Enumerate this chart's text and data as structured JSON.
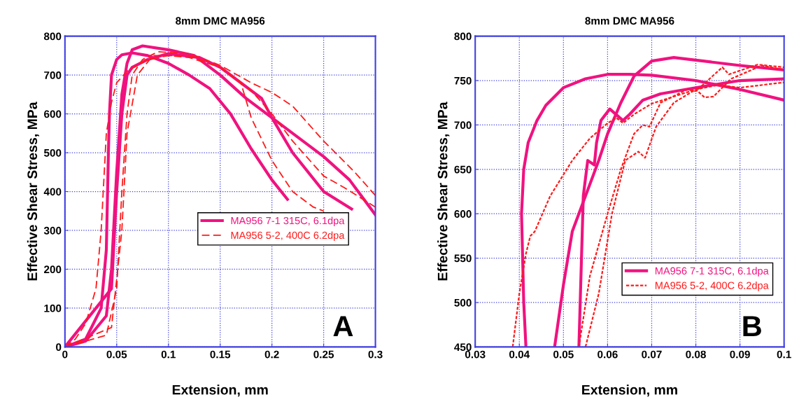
{
  "chart_data": [
    {
      "type": "line",
      "title": "8mm DMC MA956",
      "xlabel": "Extension, mm",
      "ylabel": "Effective Shear Stress, MPa",
      "xlim": [
        0,
        0.3
      ],
      "ylim": [
        0,
        800
      ],
      "xticks": [
        0,
        0.05,
        0.1,
        0.15,
        0.2,
        0.25,
        0.3
      ],
      "yticks": [
        0,
        100,
        200,
        300,
        400,
        500,
        600,
        700,
        800
      ],
      "grid": true,
      "legend": "center right",
      "annotations": [
        "A"
      ],
      "series": [
        {
          "name": "MA956 7-1 315C, 6.1dpa",
          "color": "#f0127f",
          "line_style": "solid",
          "x": [
            0,
            0.02,
            0.035,
            0.04,
            0.042,
            0.043,
            0.045,
            0.05,
            0.055,
            0.065,
            0.08,
            0.1,
            0.12,
            0.14,
            0.16,
            0.18,
            0.2,
            0.215
          ],
          "values": [
            0,
            20,
            100,
            250,
            500,
            600,
            700,
            740,
            752,
            757,
            750,
            730,
            700,
            665,
            600,
            510,
            430,
            380
          ]
        },
        {
          "color": "#f0127f",
          "line_style": "solid",
          "x": [
            0,
            0.02,
            0.04,
            0.045,
            0.05,
            0.055,
            0.06,
            0.065,
            0.075,
            0.1,
            0.125,
            0.15,
            0.175,
            0.2,
            0.225,
            0.25,
            0.275,
            0.3
          ],
          "values": [
            0,
            15,
            80,
            200,
            450,
            650,
            730,
            765,
            775,
            765,
            750,
            700,
            640,
            590,
            540,
            490,
            430,
            340
          ]
        },
        {
          "color": "#f0127f",
          "line_style": "solid",
          "x": [
            0,
            0.045,
            0.05,
            0.055,
            0.06,
            0.065,
            0.08,
            0.1,
            0.13,
            0.15,
            0.17,
            0.19,
            0.2,
            0.22,
            0.25,
            0.277
          ],
          "values": [
            0,
            150,
            400,
            600,
            700,
            720,
            740,
            755,
            745,
            720,
            680,
            640,
            590,
            500,
            400,
            355
          ]
        },
        {
          "name": "MA956 5-2, 400C 6.2dpa",
          "color": "#ff1a1a",
          "line_style": "dashed",
          "x": [
            0,
            0.01,
            0.02,
            0.03,
            0.035,
            0.038,
            0.04,
            0.045,
            0.05,
            0.06,
            0.08,
            0.1,
            0.12,
            0.15,
            0.17,
            0.18,
            0.2,
            0.22,
            0.24,
            0.25
          ],
          "values": [
            0,
            20,
            60,
            150,
            300,
            450,
            550,
            630,
            680,
            710,
            740,
            750,
            745,
            720,
            680,
            590,
            480,
            400,
            360,
            350
          ]
        },
        {
          "color": "#ff1a1a",
          "line_style": "dashed",
          "x": [
            0,
            0.04,
            0.05,
            0.055,
            0.06,
            0.065,
            0.075,
            0.09,
            0.12,
            0.15,
            0.18,
            0.2,
            0.22,
            0.25,
            0.28,
            0.3
          ],
          "values": [
            0,
            30,
            150,
            400,
            600,
            700,
            740,
            760,
            755,
            725,
            680,
            655,
            620,
            530,
            450,
            390
          ]
        },
        {
          "color": "#ff1a1a",
          "line_style": "dashed",
          "x": [
            0,
            0.045,
            0.055,
            0.06,
            0.07,
            0.085,
            0.12,
            0.15,
            0.18,
            0.2,
            0.22,
            0.25,
            0.27,
            0.3
          ],
          "values": [
            0,
            50,
            300,
            550,
            700,
            750,
            750,
            720,
            660,
            600,
            530,
            440,
            410,
            360
          ]
        }
      ]
    },
    {
      "type": "line",
      "title": "8mm DMC MA956",
      "xlabel": "Extension, mm",
      "ylabel": "Effective Shear Stress, MPa",
      "xlim": [
        0.03,
        0.1
      ],
      "ylim": [
        450,
        800
      ],
      "xticks": [
        0.03,
        0.04,
        0.05,
        0.06,
        0.07,
        0.08,
        0.09,
        0.1
      ],
      "yticks": [
        450,
        500,
        550,
        600,
        650,
        700,
        750,
        800
      ],
      "grid": true,
      "legend": "lower right",
      "annotations": [
        "B"
      ],
      "series": [
        {
          "name": "MA956 7-1 315C, 6.1dpa",
          "color": "#f0127f",
          "line_style": "solid",
          "x": [
            0.0415,
            0.041,
            0.0405,
            0.041,
            0.042,
            0.044,
            0.046,
            0.05,
            0.055,
            0.06,
            0.065,
            0.07,
            0.08,
            0.085,
            0.09,
            0.1
          ],
          "values": [
            450,
            500,
            600,
            650,
            680,
            705,
            722,
            742,
            752,
            757,
            757,
            756,
            750,
            745,
            740,
            728
          ]
        },
        {
          "color": "#f0127f",
          "line_style": "solid",
          "x": [
            0.048,
            0.05,
            0.052,
            0.055,
            0.058,
            0.06,
            0.063,
            0.066,
            0.07,
            0.075,
            0.08,
            0.09,
            0.1
          ],
          "values": [
            450,
            520,
            580,
            620,
            660,
            690,
            725,
            755,
            772,
            776,
            773,
            767,
            762
          ]
        },
        {
          "color": "#f0127f",
          "line_style": "solid",
          "x": [
            0.0535,
            0.0545,
            0.0555,
            0.057,
            0.0575,
            0.0585,
            0.0605,
            0.0635,
            0.065,
            0.068,
            0.072,
            0.08,
            0.09,
            0.1
          ],
          "values": [
            450,
            620,
            660,
            655,
            680,
            705,
            718,
            705,
            712,
            728,
            735,
            742,
            750,
            752
          ]
        },
        {
          "name": "MA956 5-2, 400C 6.2dpa",
          "color": "#ff1a1a",
          "line_style": "dotted",
          "x": [
            0.0385,
            0.04,
            0.0415,
            0.0425,
            0.0435,
            0.047,
            0.052,
            0.056,
            0.06,
            0.062,
            0.0635,
            0.066,
            0.07,
            0.08,
            0.085,
            0.09,
            0.1
          ],
          "values": [
            450,
            510,
            555,
            575,
            580,
            620,
            660,
            685,
            702,
            708,
            702,
            712,
            724,
            740,
            745,
            742,
            748
          ]
        },
        {
          "color": "#ff1a1a",
          "line_style": "dotted",
          "x": [
            0.0535,
            0.056,
            0.06,
            0.063,
            0.066,
            0.068,
            0.0695,
            0.072,
            0.078,
            0.08,
            0.086,
            0.0875,
            0.094,
            0.1
          ],
          "values": [
            450,
            530,
            600,
            650,
            690,
            700,
            698,
            725,
            740,
            738,
            765,
            757,
            768,
            765
          ]
        },
        {
          "color": "#ff1a1a",
          "line_style": "dotted",
          "x": [
            0.055,
            0.058,
            0.061,
            0.064,
            0.067,
            0.0685,
            0.071,
            0.075,
            0.08,
            0.082,
            0.084,
            0.088,
            0.095,
            0.1
          ],
          "values": [
            450,
            510,
            600,
            660,
            670,
            663,
            698,
            725,
            740,
            731,
            732,
            752,
            767,
            762
          ]
        }
      ]
    }
  ]
}
